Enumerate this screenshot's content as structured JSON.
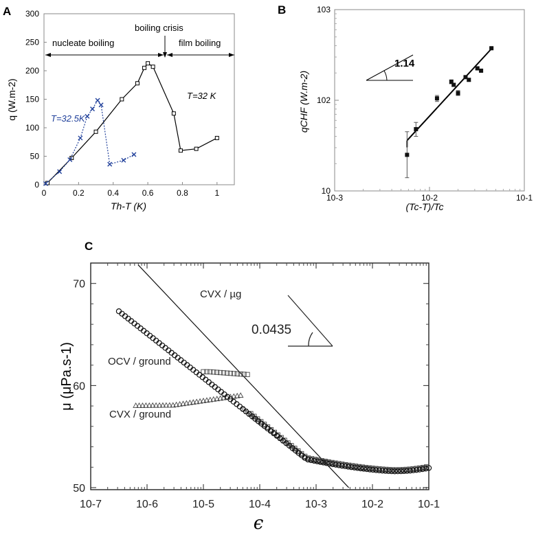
{
  "chart_data": [
    {
      "panel": "A",
      "type": "line",
      "xlabel": "Th-T (K)",
      "ylabel": "q (W.m-2)",
      "xlim": [
        0,
        1.1
      ],
      "ylim": [
        0,
        300
      ],
      "x_ticks": [
        "0",
        "0.2",
        "0.4",
        "0.6",
        "0.8",
        "1"
      ],
      "y_ticks": [
        "0",
        "50",
        "100",
        "150",
        "200",
        "250",
        "300"
      ],
      "series": [
        {
          "name": "T=32 K",
          "color": "#000000",
          "marker": "square",
          "x": [
            0.02,
            0.16,
            0.3,
            0.45,
            0.54,
            0.58,
            0.6,
            0.63,
            0.75,
            0.79,
            0.88,
            1.0
          ],
          "y": [
            3,
            47,
            93,
            150,
            178,
            205,
            213,
            207,
            125,
            60,
            63,
            82
          ]
        },
        {
          "name": "T=32.5K",
          "color": "#1f3f9a",
          "marker": "x",
          "x": [
            0.01,
            0.09,
            0.15,
            0.21,
            0.25,
            0.28,
            0.31,
            0.33,
            0.38,
            0.46,
            0.52
          ],
          "y": [
            2,
            23,
            44,
            82,
            120,
            133,
            148,
            140,
            36,
            43,
            53
          ]
        }
      ],
      "annotations": {
        "nucleate": "nucleate boiling",
        "crisis": "boiling crisis",
        "film": "film boiling",
        "t32": "T=32 K",
        "t325": "T=32.5K"
      }
    },
    {
      "panel": "B",
      "type": "scatter",
      "xlabel": "(Tc-T)/Tc",
      "ylabel": "qCHF (W.m-2)",
      "xscale": "log",
      "yscale": "log",
      "xlim": [
        0.001,
        0.1
      ],
      "ylim": [
        10,
        1000
      ],
      "x_ticks": [
        "10-3",
        "10-2",
        "10-1"
      ],
      "y_ticks": [
        "10",
        "102",
        "103"
      ],
      "slope_label": "1.14",
      "points": [
        {
          "x": 0.0058,
          "y": 25,
          "err": [
            14,
            45
          ]
        },
        {
          "x": 0.0072,
          "y": 48,
          "err": [
            40,
            57
          ]
        },
        {
          "x": 0.012,
          "y": 105,
          "err": [
            97,
            113
          ]
        },
        {
          "x": 0.017,
          "y": 160,
          "err": [
            152,
            168
          ]
        },
        {
          "x": 0.018,
          "y": 148,
          "err": [
            142,
            154
          ]
        },
        {
          "x": 0.02,
          "y": 120,
          "err": [
            113,
            128
          ]
        },
        {
          "x": 0.024,
          "y": 180,
          "err": [
            174,
            186
          ]
        },
        {
          "x": 0.026,
          "y": 168,
          "err": [
            162,
            174
          ]
        },
        {
          "x": 0.032,
          "y": 225,
          "err": [
            219,
            231
          ]
        },
        {
          "x": 0.035,
          "y": 212,
          "err": [
            206,
            218
          ]
        },
        {
          "x": 0.045,
          "y": 375,
          "err": [
            369,
            381
          ]
        }
      ],
      "fit_line": {
        "x": [
          0.0058,
          0.045
        ],
        "y": [
          36,
          370
        ]
      }
    },
    {
      "panel": "C",
      "type": "scatter",
      "xlabel": "ϵ",
      "ylabel": "μ (μPa.s-1)",
      "xscale": "log",
      "xlim": [
        1e-07,
        0.1
      ],
      "ylim": [
        49.8,
        72
      ],
      "x_ticks": [
        "10-7",
        "10-6",
        "10-5",
        "10-4",
        "10-3",
        "10-2",
        "10-1"
      ],
      "y_ticks": [
        "50",
        "60",
        "70"
      ],
      "slope_label": "0.0435",
      "asymptote": {
        "x": [
          7e-07,
          0.0038
        ],
        "y": [
          71.8,
          50
        ]
      },
      "series": [
        {
          "name": "CVX / µg",
          "marker": "circle",
          "key": "cvx_ug"
        },
        {
          "name": "OCV / ground",
          "marker": "square",
          "key": "ocv"
        },
        {
          "name": "CVX / ground",
          "marker": "triangle",
          "key": "cvx_ground"
        }
      ]
    }
  ],
  "labels": {
    "panel_a": "A",
    "panel_b": "B",
    "panel_c": "C"
  }
}
